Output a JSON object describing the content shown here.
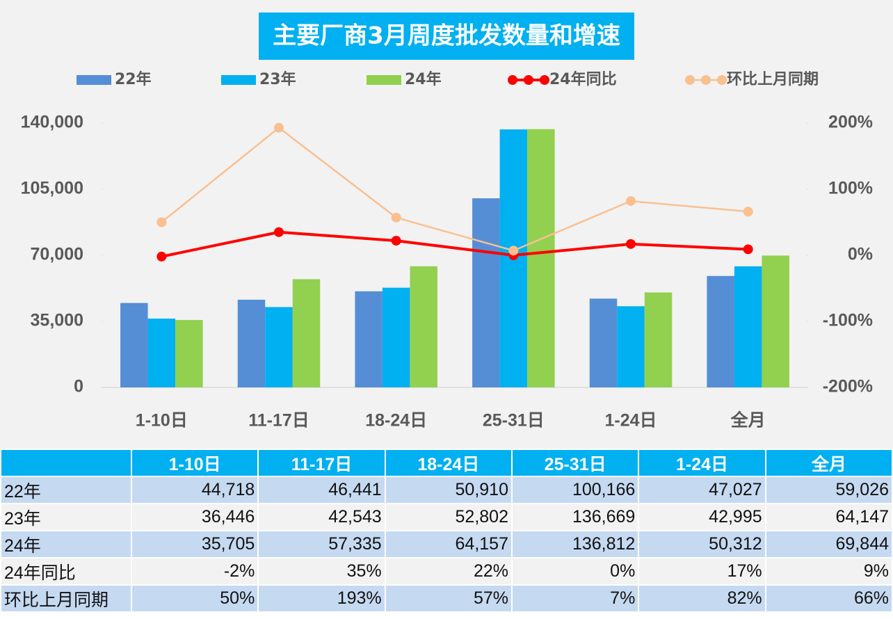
{
  "chart_data": {
    "type": "bar",
    "title": "主要厂商3月周度批发数量和增速",
    "categories": [
      "1-10日",
      "11-17日",
      "18-24日",
      "25-31日",
      "1-24日",
      "全月"
    ],
    "series": [
      {
        "name": "22年",
        "color": "#558ed5",
        "values": [
          44718,
          46441,
          50910,
          100166,
          47027,
          59026
        ],
        "value_labels": [
          "44,718",
          "46,441",
          "50,910",
          "100,166",
          "47,027",
          "59,026"
        ]
      },
      {
        "name": "23年",
        "color": "#00b0f0",
        "values": [
          36446,
          42543,
          52802,
          136669,
          42995,
          64147
        ],
        "value_labels": [
          "36,446",
          "42,543",
          "52,802",
          "136,669",
          "42,995",
          "64,147"
        ]
      },
      {
        "name": "24年",
        "color": "#92d050",
        "values": [
          35705,
          57335,
          64157,
          136812,
          50312,
          69844
        ],
        "value_labels": [
          "35,705",
          "57,335",
          "64,157",
          "136,812",
          "50,312",
          "69,844"
        ]
      },
      {
        "name": "24年同比",
        "type": "line",
        "axis": "y2",
        "color": "#ff0000",
        "values": [
          -2,
          35,
          22,
          0,
          17,
          9
        ],
        "value_labels": [
          "-2%",
          "35%",
          "22%",
          "0%",
          "17%",
          "9%"
        ]
      },
      {
        "name": "环比上月同期",
        "type": "line",
        "axis": "y2",
        "color": "#fac090",
        "values": [
          50,
          193,
          57,
          7,
          82,
          66
        ],
        "value_labels": [
          "50%",
          "193%",
          "57%",
          "7%",
          "82%",
          "66%"
        ]
      }
    ],
    "ylim": [
      0,
      140000
    ],
    "yticks": [
      0,
      {
        "value": 35000,
        "label": "35,000"
      },
      {
        "value": 70000,
        "label": "70,000"
      },
      {
        "value": 105000,
        "label": "105,000"
      },
      {
        "value": 140000,
        "label": "140,000"
      }
    ],
    "y2lim": [
      -200,
      200
    ],
    "y2ticks": [
      {
        "value": -200,
        "label": "-200%"
      },
      {
        "value": -100,
        "label": "-100%"
      },
      {
        "value": 0,
        "label": "0%"
      },
      {
        "value": 100,
        "label": "100%"
      },
      {
        "value": 200,
        "label": "200%"
      }
    ],
    "legend": "top",
    "grid": false
  }
}
